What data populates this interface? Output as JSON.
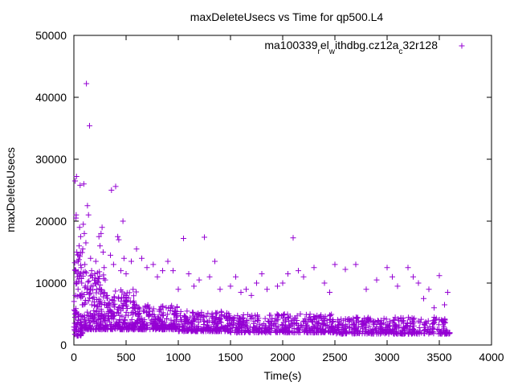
{
  "chart_data": {
    "type": "scatter",
    "title": "maxDeleteUsecs vs Time for qp500.L4",
    "xlabel": "Time(s)",
    "ylabel": "maxDeleteUsecs",
    "xlim": [
      0,
      4000
    ],
    "ylim": [
      0,
      50000
    ],
    "x_ticks": [
      0,
      500,
      1000,
      1500,
      2000,
      2500,
      3000,
      3500,
      4000
    ],
    "y_ticks": [
      0,
      10000,
      20000,
      30000,
      40000,
      50000
    ],
    "legend": {
      "position": "top-right",
      "label": "ma100339_rel_withdbg.cz12a_c32r128",
      "label_parts": [
        {
          "text": "ma100339",
          "sub": false
        },
        {
          "text": "r",
          "sub": true
        },
        {
          "text": "el",
          "sub": false
        },
        {
          "text": "w",
          "sub": true
        },
        {
          "text": "ithdbg.cz12a",
          "sub": false
        },
        {
          "text": "c",
          "sub": true
        },
        {
          "text": "32r128",
          "sub": false
        }
      ]
    },
    "marker": "+",
    "color": "#9400d3",
    "series": [
      {
        "name": "ma100339_rel_withdbg.cz12a_c32r128",
        "points": [
          [
            5,
            2500
          ],
          [
            8,
            3500
          ],
          [
            10,
            5000
          ],
          [
            12,
            26500
          ],
          [
            15,
            8000
          ],
          [
            18,
            12000
          ],
          [
            20,
            20500
          ],
          [
            22,
            21000
          ],
          [
            25,
            27200
          ],
          [
            28,
            15000
          ],
          [
            30,
            13500
          ],
          [
            35,
            11000
          ],
          [
            40,
            9000
          ],
          [
            45,
            14500
          ],
          [
            50,
            16000
          ],
          [
            55,
            19000
          ],
          [
            60,
            25800
          ],
          [
            65,
            17500
          ],
          [
            70,
            12500
          ],
          [
            75,
            10000
          ],
          [
            80,
            6500
          ],
          [
            85,
            15500
          ],
          [
            90,
            19500
          ],
          [
            95,
            26000
          ],
          [
            100,
            18000
          ],
          [
            105,
            13000
          ],
          [
            110,
            9500
          ],
          [
            115,
            16500
          ],
          [
            120,
            42200
          ],
          [
            125,
            8500
          ],
          [
            130,
            22500
          ],
          [
            140,
            21000
          ],
          [
            150,
            35400
          ],
          [
            160,
            14000
          ],
          [
            170,
            12000
          ],
          [
            180,
            7500
          ],
          [
            190,
            5500
          ],
          [
            200,
            11500
          ],
          [
            210,
            13500
          ],
          [
            220,
            9000
          ],
          [
            240,
            17500
          ],
          [
            250,
            16000
          ],
          [
            260,
            18000
          ],
          [
            270,
            19000
          ],
          [
            280,
            15000
          ],
          [
            290,
            12500
          ],
          [
            300,
            10500
          ],
          [
            320,
            8000
          ],
          [
            350,
            14500
          ],
          [
            360,
            25000
          ],
          [
            380,
            13000
          ],
          [
            400,
            25600
          ],
          [
            420,
            17500
          ],
          [
            430,
            17000
          ],
          [
            450,
            12000
          ],
          [
            470,
            20000
          ],
          [
            480,
            14000
          ],
          [
            500,
            11500
          ],
          [
            550,
            13500
          ],
          [
            600,
            15500
          ],
          [
            650,
            14000
          ],
          [
            700,
            12500
          ],
          [
            760,
            13000
          ],
          [
            800,
            11000
          ],
          [
            850,
            12000
          ],
          [
            900,
            13500
          ],
          [
            950,
            12000
          ],
          [
            1000,
            9000
          ],
          [
            1050,
            17200
          ],
          [
            1100,
            11500
          ],
          [
            1150,
            9500
          ],
          [
            1200,
            10500
          ],
          [
            1250,
            17400
          ],
          [
            1300,
            11000
          ],
          [
            1350,
            13500
          ],
          [
            1400,
            9000
          ],
          [
            1500,
            9500
          ],
          [
            1550,
            11000
          ],
          [
            1600,
            8500
          ],
          [
            1650,
            9000
          ],
          [
            1700,
            8000
          ],
          [
            1750,
            10000
          ],
          [
            1800,
            11500
          ],
          [
            1850,
            9000
          ],
          [
            1950,
            9500
          ],
          [
            2000,
            10000
          ],
          [
            2050,
            11500
          ],
          [
            2100,
            17300
          ],
          [
            2150,
            12000
          ],
          [
            2200,
            11000
          ],
          [
            2300,
            12500
          ],
          [
            2400,
            10000
          ],
          [
            2450,
            8500
          ],
          [
            2500,
            13000
          ],
          [
            2600,
            12200
          ],
          [
            2700,
            13000
          ],
          [
            2800,
            9000
          ],
          [
            2900,
            10500
          ],
          [
            3000,
            12500
          ],
          [
            3050,
            11000
          ],
          [
            3100,
            9500
          ],
          [
            3200,
            12500
          ],
          [
            3250,
            11000
          ],
          [
            3300,
            10000
          ],
          [
            3350,
            7500
          ],
          [
            3400,
            9000
          ],
          [
            3450,
            6000
          ],
          [
            3500,
            11200
          ],
          [
            3550,
            6500
          ],
          [
            3580,
            8500
          ],
          [
            3600,
            2000
          ]
        ],
        "dense_band": [
          {
            "x": [
              0,
              100
            ],
            "y": [
              1500,
              15000
            ],
            "count": 90
          },
          {
            "x": [
              100,
              300
            ],
            "y": [
              2500,
              12000
            ],
            "count": 160
          },
          {
            "x": [
              300,
              600
            ],
            "y": [
              2500,
              9000
            ],
            "count": 200
          },
          {
            "x": [
              600,
              1000
            ],
            "y": [
              2500,
              6500
            ],
            "count": 220
          },
          {
            "x": [
              1000,
              1500
            ],
            "y": [
              2200,
              5500
            ],
            "count": 240
          },
          {
            "x": [
              1500,
              2500
            ],
            "y": [
              2000,
              5000
            ],
            "count": 380
          },
          {
            "x": [
              2500,
              3600
            ],
            "y": [
              1800,
              4500
            ],
            "count": 380
          }
        ]
      }
    ]
  }
}
